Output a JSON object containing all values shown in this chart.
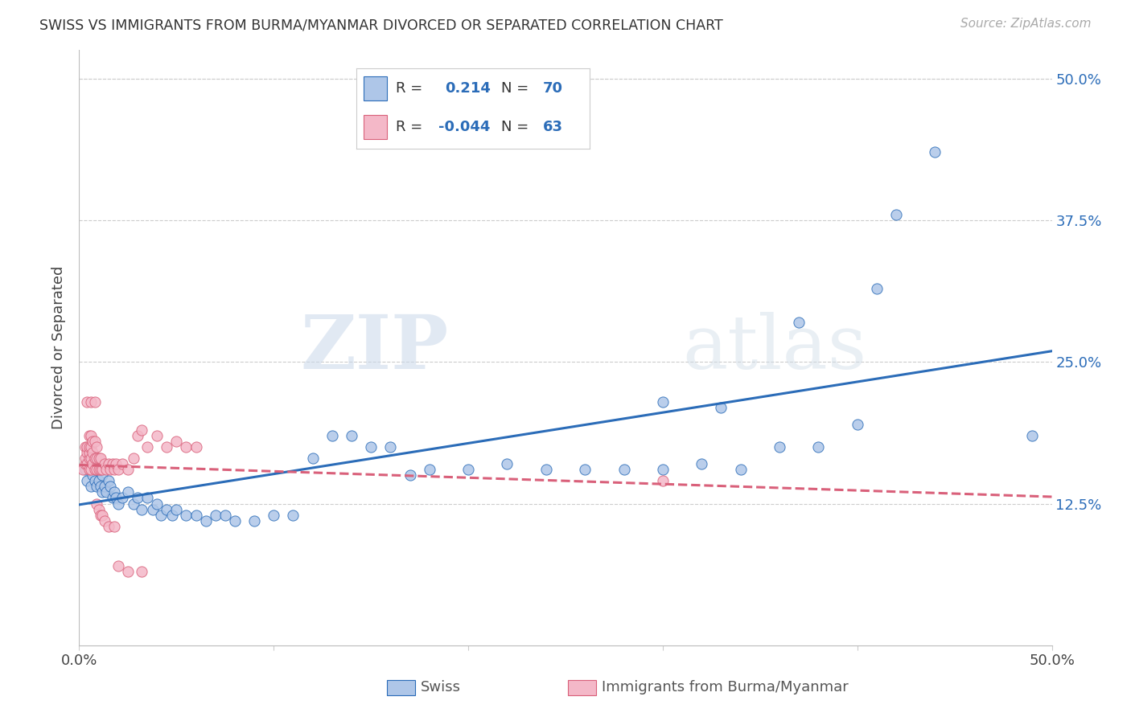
{
  "title": "SWISS VS IMMIGRANTS FROM BURMA/MYANMAR DIVORCED OR SEPARATED CORRELATION CHART",
  "source": "Source: ZipAtlas.com",
  "ylabel": "Divorced or Separated",
  "legend_swiss": "Swiss",
  "legend_burma": "Immigrants from Burma/Myanmar",
  "swiss_R": "0.214",
  "swiss_N": "70",
  "burma_R": "-0.044",
  "burma_N": "63",
  "swiss_color": "#aec6e8",
  "swiss_line_color": "#2b6cb8",
  "burma_color": "#f4b8c8",
  "burma_line_color": "#d9607a",
  "background_color": "#ffffff",
  "watermark_zip": "ZIP",
  "watermark_atlas": "atlas",
  "xlim": [
    0.0,
    0.5
  ],
  "ylim": [
    0.0,
    0.525
  ],
  "yticks": [
    0.125,
    0.25,
    0.375,
    0.5
  ],
  "ytick_labels": [
    "12.5%",
    "25.0%",
    "37.5%",
    "50.0%"
  ],
  "swiss_points": [
    [
      0.003,
      0.155
    ],
    [
      0.004,
      0.145
    ],
    [
      0.005,
      0.16
    ],
    [
      0.006,
      0.14
    ],
    [
      0.006,
      0.155
    ],
    [
      0.007,
      0.15
    ],
    [
      0.007,
      0.165
    ],
    [
      0.008,
      0.145
    ],
    [
      0.008,
      0.16
    ],
    [
      0.009,
      0.14
    ],
    [
      0.009,
      0.155
    ],
    [
      0.01,
      0.145
    ],
    [
      0.011,
      0.14
    ],
    [
      0.011,
      0.155
    ],
    [
      0.012,
      0.135
    ],
    [
      0.012,
      0.15
    ],
    [
      0.013,
      0.14
    ],
    [
      0.014,
      0.135
    ],
    [
      0.015,
      0.145
    ],
    [
      0.016,
      0.14
    ],
    [
      0.017,
      0.13
    ],
    [
      0.018,
      0.135
    ],
    [
      0.019,
      0.13
    ],
    [
      0.02,
      0.125
    ],
    [
      0.022,
      0.13
    ],
    [
      0.025,
      0.135
    ],
    [
      0.028,
      0.125
    ],
    [
      0.03,
      0.13
    ],
    [
      0.032,
      0.12
    ],
    [
      0.035,
      0.13
    ],
    [
      0.038,
      0.12
    ],
    [
      0.04,
      0.125
    ],
    [
      0.042,
      0.115
    ],
    [
      0.045,
      0.12
    ],
    [
      0.048,
      0.115
    ],
    [
      0.05,
      0.12
    ],
    [
      0.055,
      0.115
    ],
    [
      0.06,
      0.115
    ],
    [
      0.065,
      0.11
    ],
    [
      0.07,
      0.115
    ],
    [
      0.075,
      0.115
    ],
    [
      0.08,
      0.11
    ],
    [
      0.09,
      0.11
    ],
    [
      0.1,
      0.115
    ],
    [
      0.11,
      0.115
    ],
    [
      0.12,
      0.165
    ],
    [
      0.13,
      0.185
    ],
    [
      0.14,
      0.185
    ],
    [
      0.15,
      0.175
    ],
    [
      0.16,
      0.175
    ],
    [
      0.17,
      0.15
    ],
    [
      0.18,
      0.155
    ],
    [
      0.2,
      0.155
    ],
    [
      0.22,
      0.16
    ],
    [
      0.24,
      0.155
    ],
    [
      0.26,
      0.155
    ],
    [
      0.28,
      0.155
    ],
    [
      0.3,
      0.155
    ],
    [
      0.32,
      0.16
    ],
    [
      0.34,
      0.155
    ],
    [
      0.36,
      0.175
    ],
    [
      0.38,
      0.175
    ],
    [
      0.4,
      0.195
    ],
    [
      0.3,
      0.215
    ],
    [
      0.33,
      0.21
    ],
    [
      0.37,
      0.285
    ],
    [
      0.41,
      0.315
    ],
    [
      0.42,
      0.38
    ],
    [
      0.44,
      0.435
    ],
    [
      0.49,
      0.185
    ]
  ],
  "burma_points": [
    [
      0.002,
      0.155
    ],
    [
      0.003,
      0.16
    ],
    [
      0.003,
      0.165
    ],
    [
      0.003,
      0.175
    ],
    [
      0.004,
      0.16
    ],
    [
      0.004,
      0.17
    ],
    [
      0.004,
      0.175
    ],
    [
      0.005,
      0.155
    ],
    [
      0.005,
      0.165
    ],
    [
      0.005,
      0.17
    ],
    [
      0.005,
      0.175
    ],
    [
      0.005,
      0.185
    ],
    [
      0.006,
      0.155
    ],
    [
      0.006,
      0.165
    ],
    [
      0.006,
      0.175
    ],
    [
      0.006,
      0.185
    ],
    [
      0.007,
      0.16
    ],
    [
      0.007,
      0.17
    ],
    [
      0.007,
      0.18
    ],
    [
      0.008,
      0.155
    ],
    [
      0.008,
      0.165
    ],
    [
      0.008,
      0.18
    ],
    [
      0.009,
      0.155
    ],
    [
      0.009,
      0.165
    ],
    [
      0.009,
      0.175
    ],
    [
      0.01,
      0.155
    ],
    [
      0.01,
      0.165
    ],
    [
      0.011,
      0.155
    ],
    [
      0.011,
      0.165
    ],
    [
      0.012,
      0.155
    ],
    [
      0.013,
      0.16
    ],
    [
      0.014,
      0.155
    ],
    [
      0.015,
      0.16
    ],
    [
      0.016,
      0.155
    ],
    [
      0.017,
      0.16
    ],
    [
      0.018,
      0.155
    ],
    [
      0.019,
      0.16
    ],
    [
      0.02,
      0.155
    ],
    [
      0.022,
      0.16
    ],
    [
      0.025,
      0.155
    ],
    [
      0.028,
      0.165
    ],
    [
      0.03,
      0.185
    ],
    [
      0.032,
      0.19
    ],
    [
      0.035,
      0.175
    ],
    [
      0.04,
      0.185
    ],
    [
      0.045,
      0.175
    ],
    [
      0.05,
      0.18
    ],
    [
      0.055,
      0.175
    ],
    [
      0.06,
      0.175
    ],
    [
      0.004,
      0.215
    ],
    [
      0.006,
      0.215
    ],
    [
      0.008,
      0.215
    ],
    [
      0.009,
      0.125
    ],
    [
      0.01,
      0.12
    ],
    [
      0.011,
      0.115
    ],
    [
      0.012,
      0.115
    ],
    [
      0.013,
      0.11
    ],
    [
      0.015,
      0.105
    ],
    [
      0.018,
      0.105
    ],
    [
      0.02,
      0.07
    ],
    [
      0.025,
      0.065
    ],
    [
      0.032,
      0.065
    ],
    [
      0.3,
      0.145
    ]
  ]
}
